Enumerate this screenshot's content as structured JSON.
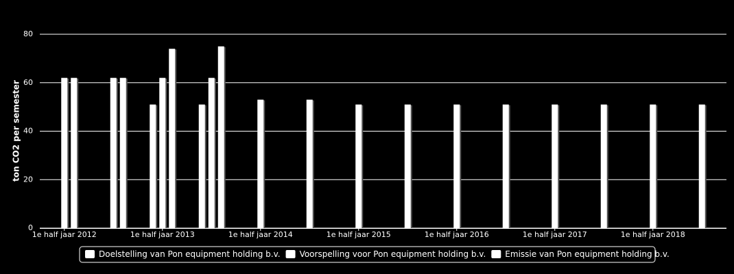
{
  "chart_data": {
    "type": "bar",
    "y_label": "ton CO2 per semester",
    "categories": [
      "1e half jaar 2012",
      null,
      "1e half jaar 2013",
      null,
      "1e half jaar 2014",
      null,
      "1e half jaar 2015",
      null,
      "1e half jaar 2016",
      null,
      "1e half jaar 2017",
      null,
      "1e half jaar 2018",
      null
    ],
    "series": [
      {
        "name": "Doelstelling van Pon equipment holding b.v.",
        "color": "#ffffff",
        "values": [
          null,
          null,
          51,
          51,
          null,
          null,
          null,
          null,
          null,
          null,
          null,
          null,
          null,
          null
        ]
      },
      {
        "name": "Voorspelling voor Pon equipment holding b.v.",
        "color": "#ffffff",
        "values": [
          62,
          62,
          62,
          62,
          53,
          53,
          51,
          51,
          51,
          51,
          51,
          51,
          51,
          51
        ]
      },
      {
        "name": "Emissie van Pon equipment holding b.v.",
        "color": "#ffffff",
        "values": [
          62,
          62,
          74,
          75,
          null,
          null,
          null,
          null,
          null,
          null,
          null,
          null,
          null,
          null
        ]
      }
    ],
    "ylim": [
      0,
      80
    ],
    "yticks": [
      0,
      20,
      40,
      60,
      80
    ],
    "grid": true
  }
}
